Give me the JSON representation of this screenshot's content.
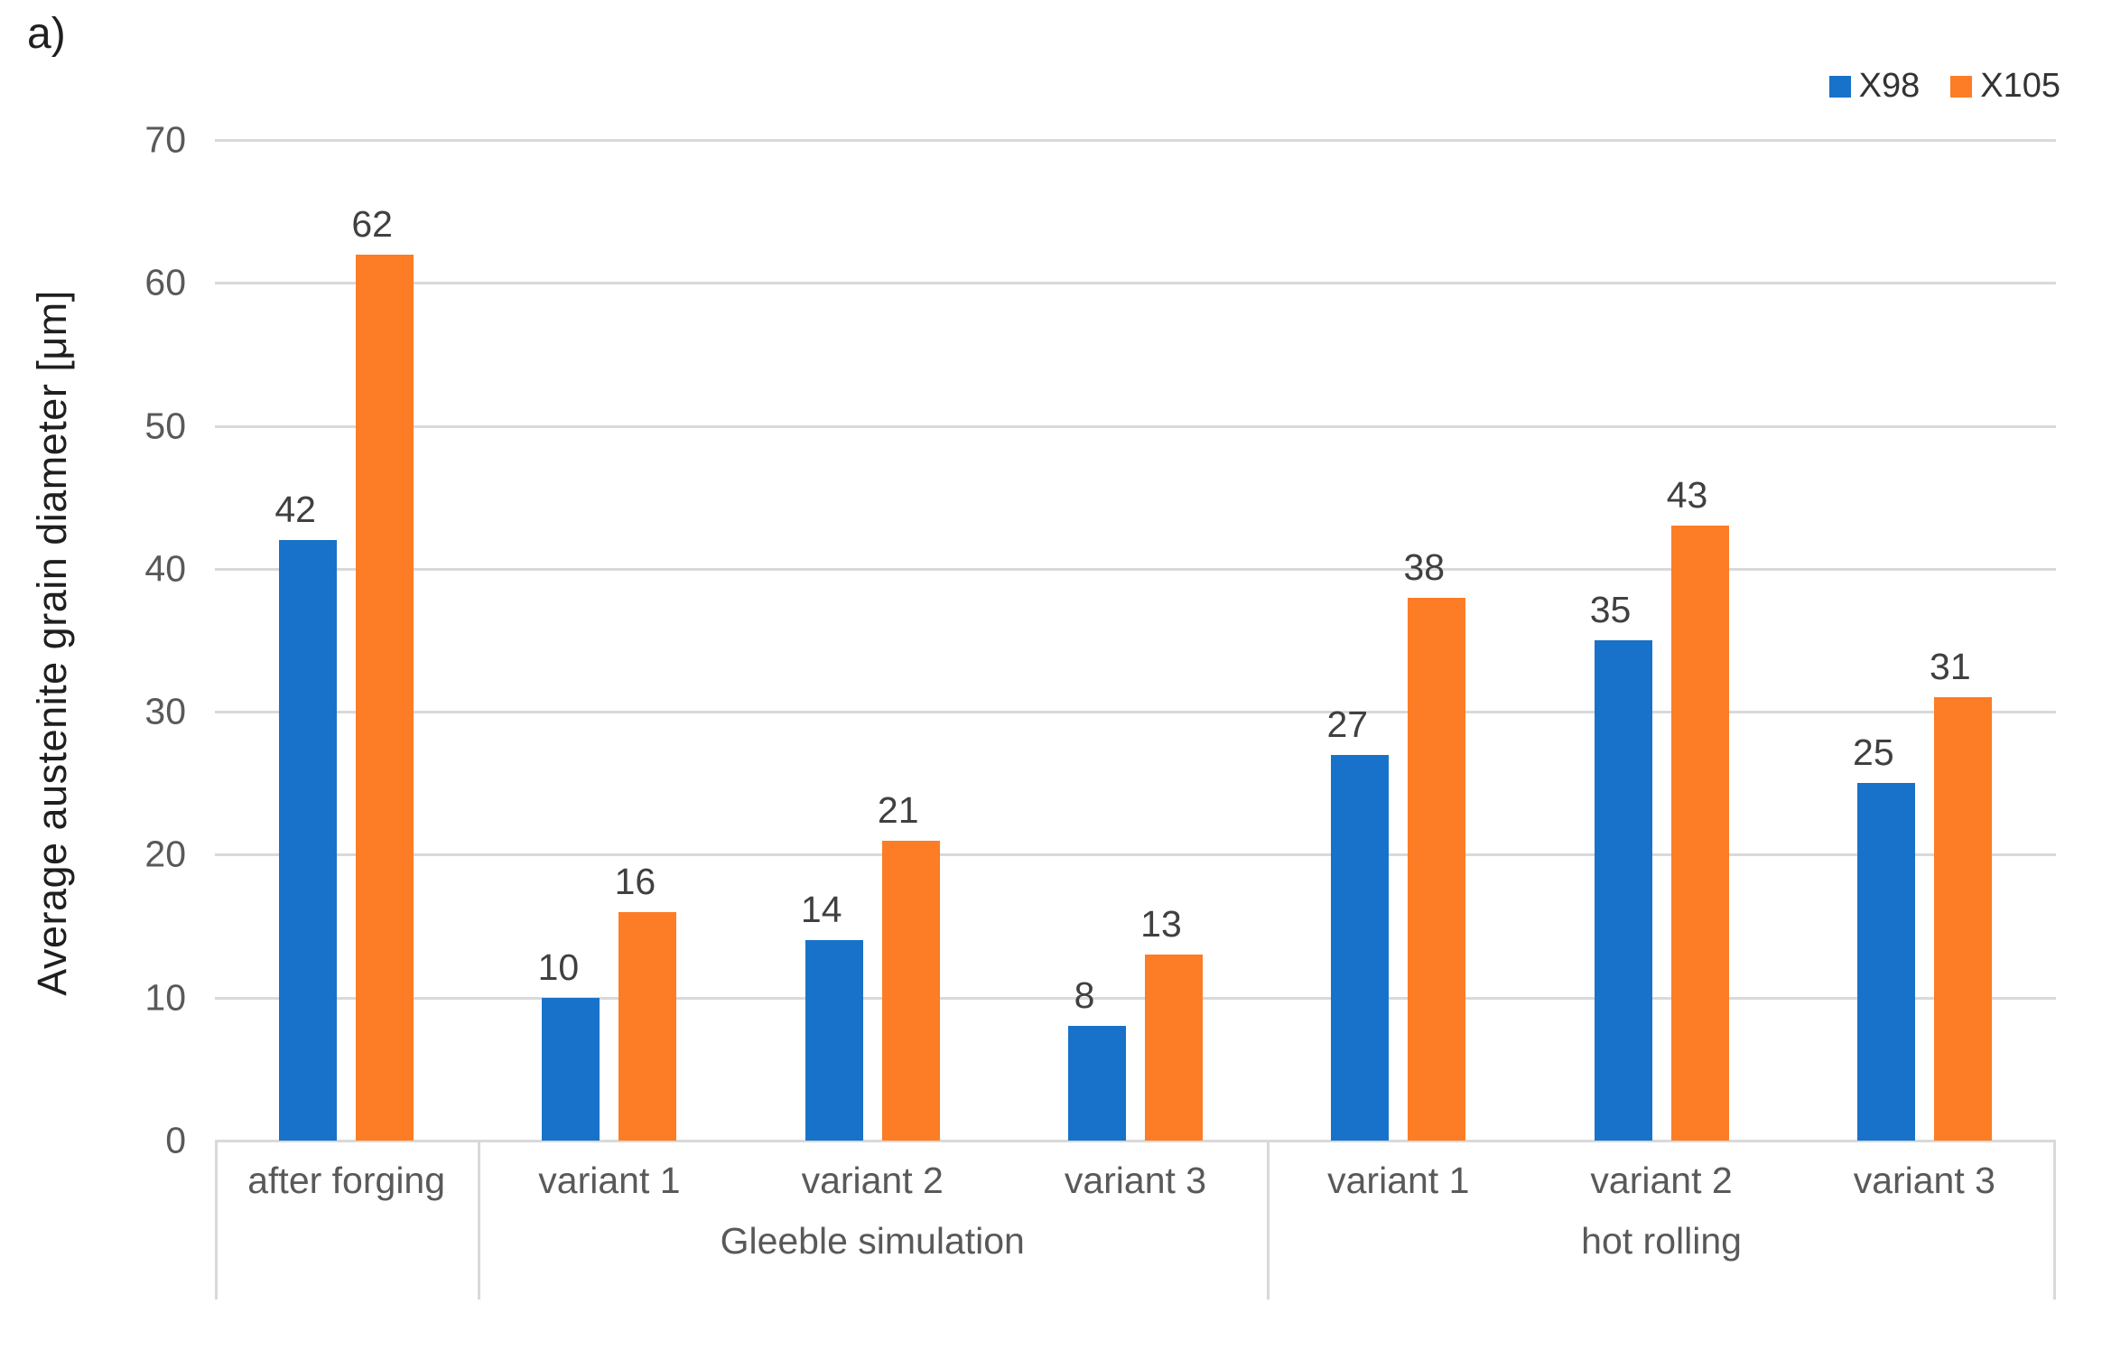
{
  "figure_label": "a)",
  "legend": [
    {
      "label": "X98",
      "color": "#1872C9"
    },
    {
      "label": "X105",
      "color": "#FC7D25"
    }
  ],
  "chart_data": {
    "type": "bar",
    "title": "",
    "xlabel": "",
    "ylabel": "Average austenite grain diameter [μm]",
    "ylim": [
      0,
      70
    ],
    "yticks": [
      0,
      10,
      20,
      30,
      40,
      50,
      60,
      70
    ],
    "grid": true,
    "legend_position": "top-right",
    "gridline_color": "#D9D9D9",
    "categories": [
      "after forging",
      "variant 1",
      "variant 2",
      "variant 3",
      "variant 1",
      "variant 2",
      "variant 3"
    ],
    "category_groups": [
      {
        "label": "",
        "span": 1
      },
      {
        "label": "Gleeble simulation",
        "span": 3
      },
      {
        "label": "hot rolling",
        "span": 3
      }
    ],
    "series": [
      {
        "name": "X98",
        "color": "#1872C9",
        "values": [
          42,
          10,
          14,
          8,
          27,
          35,
          25
        ]
      },
      {
        "name": "X105",
        "color": "#FC7D25",
        "values": [
          62,
          16,
          21,
          13,
          38,
          43,
          31
        ]
      }
    ]
  }
}
